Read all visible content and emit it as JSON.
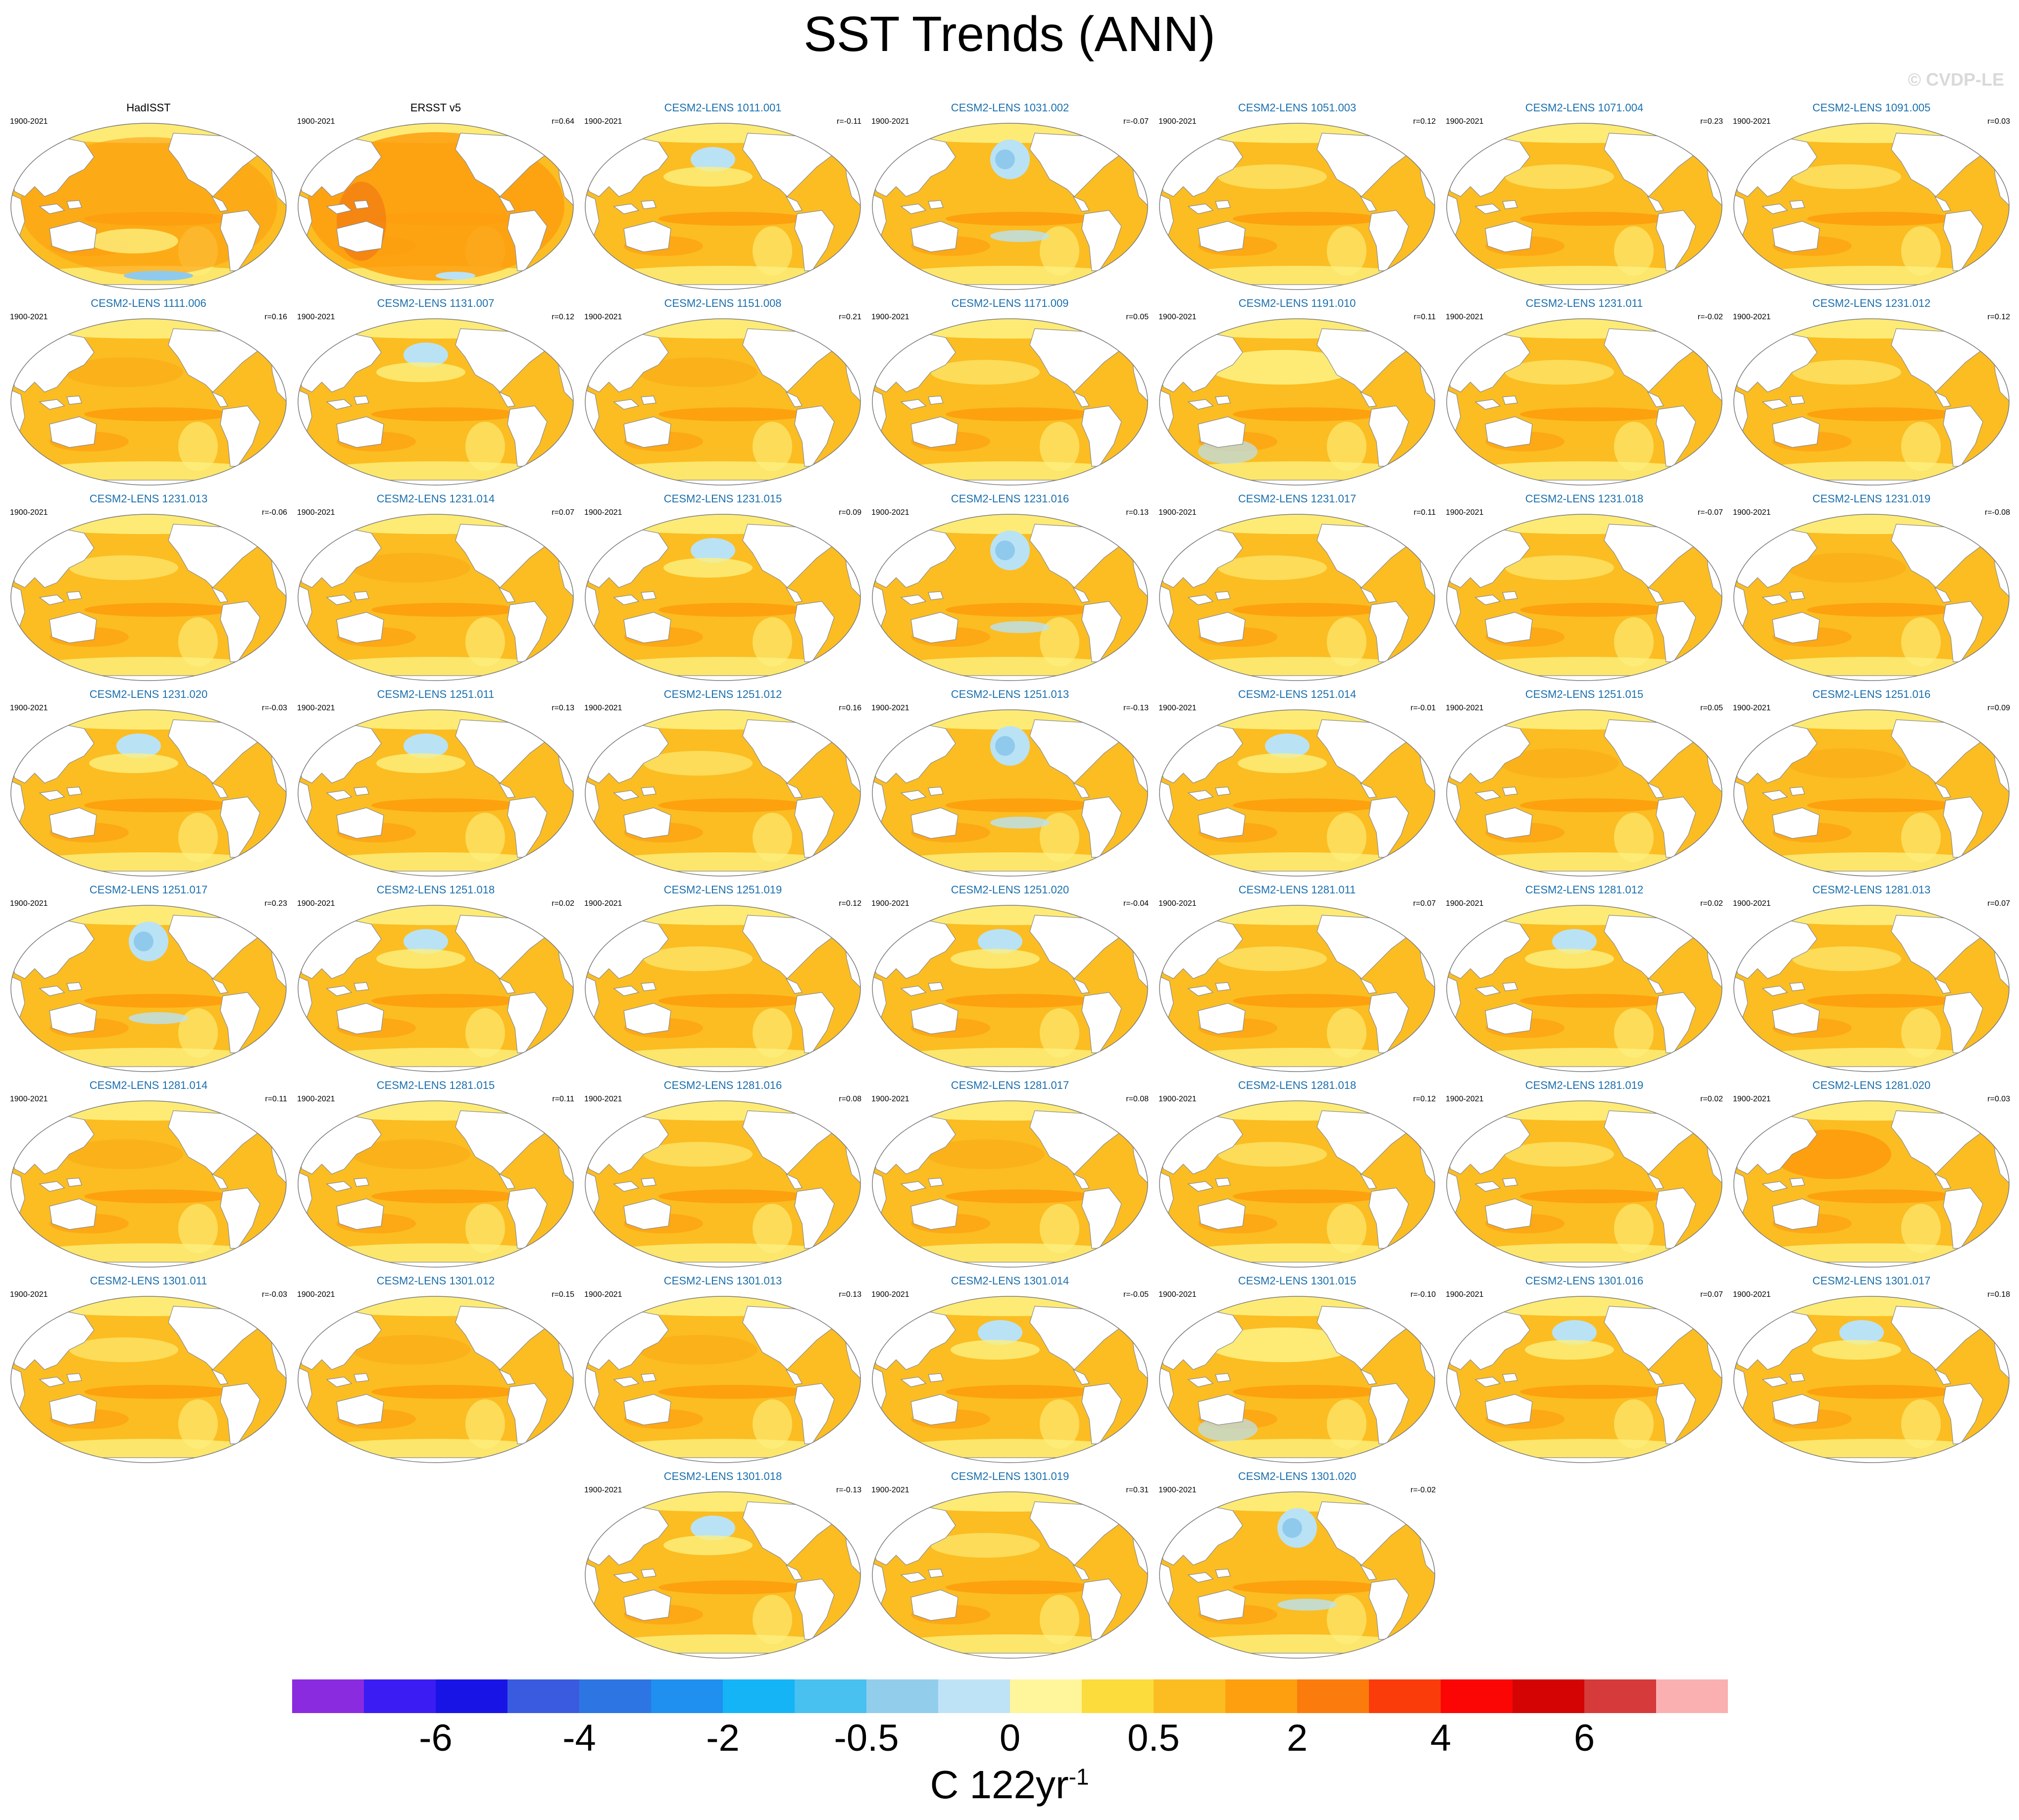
{
  "title": "SST Trends (ANN)",
  "watermark": "© CVDP-LE",
  "period": "1900-2021",
  "units": {
    "text": "C 122yr",
    "superscript": "-1"
  },
  "colors": {
    "ocean_base": "#fbbd22",
    "ocean_warm": "#fd9f0f",
    "ocean_light": "#fdf07f",
    "ocean_cool": "#b9e2f5",
    "ocean_cold": "#8fcaed",
    "ocean_hot": "#f06a12",
    "land": "#ffffff",
    "coast": "#8a8a8a",
    "model_title": "#1a6fae",
    "obs_title": "#000000"
  },
  "chart_data": {
    "type": "heatmap",
    "title": "SST Trends (ANN)",
    "description_units": "C 122yr-1",
    "colorbar": {
      "colors": [
        "#8b2be0",
        "#3b1df4",
        "#1914e6",
        "#3a5be0",
        "#2d75e3",
        "#1f8ff0",
        "#15b4f7",
        "#48c0f0",
        "#93cdec",
        "#bfe3f6",
        "#fff59a",
        "#fbdc3c",
        "#fbbd22",
        "#fd9f0f",
        "#fb7b0d",
        "#fa3c0a",
        "#fc0505",
        "#d40404",
        "#d63a3a",
        "#fab0b0"
      ],
      "tick_labels": [
        "-6",
        "-4",
        "-2",
        "-0.5",
        "0",
        "0.5",
        "2",
        "4",
        "6"
      ]
    },
    "panels": [
      {
        "name": "HadISST",
        "r": "",
        "obs": true,
        "pattern": "obs1"
      },
      {
        "name": "ERSST v5",
        "r": "r=0.64",
        "obs": true,
        "pattern": "obs2"
      },
      {
        "name": "CESM2-LENS 1011.001",
        "r": "r=-0.11",
        "pattern": "p_blue"
      },
      {
        "name": "CESM2-LENS 1031.002",
        "r": "r=-0.07",
        "pattern": "p_blue2"
      },
      {
        "name": "CESM2-LENS 1051.003",
        "r": "r=0.12",
        "pattern": "p_std"
      },
      {
        "name": "CESM2-LENS 1071.004",
        "r": "r=0.23",
        "pattern": "p_std"
      },
      {
        "name": "CESM2-LENS 1091.005",
        "r": "r=0.03",
        "pattern": "p_std"
      },
      {
        "name": "CESM2-LENS 1111.006",
        "r": "r=0.16",
        "pattern": "p_plain"
      },
      {
        "name": "CESM2-LENS 1131.007",
        "r": "r=0.12",
        "pattern": "p_blue"
      },
      {
        "name": "CESM2-LENS 1151.008",
        "r": "r=0.21",
        "pattern": "p_plain"
      },
      {
        "name": "CESM2-LENS 1171.009",
        "r": "r=0.05",
        "pattern": "p_std"
      },
      {
        "name": "CESM2-LENS 1191.010",
        "r": "r=0.11",
        "pattern": "p_light"
      },
      {
        "name": "CESM2-LENS 1231.011",
        "r": "r=-0.02",
        "pattern": "p_std"
      },
      {
        "name": "CESM2-LENS 1231.012",
        "r": "r=0.12",
        "pattern": "p_std"
      },
      {
        "name": "CESM2-LENS 1231.013",
        "r": "r=-0.06",
        "pattern": "p_std"
      },
      {
        "name": "CESM2-LENS 1231.014",
        "r": "r=0.07",
        "pattern": "p_plain"
      },
      {
        "name": "CESM2-LENS 1231.015",
        "r": "r=0.09",
        "pattern": "p_blue"
      },
      {
        "name": "CESM2-LENS 1231.016",
        "r": "r=0.13",
        "pattern": "p_blue2"
      },
      {
        "name": "CESM2-LENS 1231.017",
        "r": "r=0.11",
        "pattern": "p_std"
      },
      {
        "name": "CESM2-LENS 1231.018",
        "r": "r=-0.07",
        "pattern": "p_std"
      },
      {
        "name": "CESM2-LENS 1231.019",
        "r": "r=-0.08",
        "pattern": "p_plain"
      },
      {
        "name": "CESM2-LENS 1231.020",
        "r": "r=-0.03",
        "pattern": "p_blue"
      },
      {
        "name": "CESM2-LENS 1251.011",
        "r": "r=0.13",
        "pattern": "p_blue"
      },
      {
        "name": "CESM2-LENS 1251.012",
        "r": "r=0.16",
        "pattern": "p_std"
      },
      {
        "name": "CESM2-LENS 1251.013",
        "r": "r=-0.13",
        "pattern": "p_blue2"
      },
      {
        "name": "CESM2-LENS 1251.014",
        "r": "r=-0.01",
        "pattern": "p_blue"
      },
      {
        "name": "CESM2-LENS 1251.015",
        "r": "r=0.05",
        "pattern": "p_plain"
      },
      {
        "name": "CESM2-LENS 1251.016",
        "r": "r=0.09",
        "pattern": "p_plain"
      },
      {
        "name": "CESM2-LENS 1251.017",
        "r": "r=0.23",
        "pattern": "p_blue2"
      },
      {
        "name": "CESM2-LENS 1251.018",
        "r": "r=0.02",
        "pattern": "p_blue"
      },
      {
        "name": "CESM2-LENS 1251.019",
        "r": "r=0.12",
        "pattern": "p_std"
      },
      {
        "name": "CESM2-LENS 1251.020",
        "r": "r=-0.04",
        "pattern": "p_blue"
      },
      {
        "name": "CESM2-LENS 1281.011",
        "r": "r=0.07",
        "pattern": "p_std"
      },
      {
        "name": "CESM2-LENS 1281.012",
        "r": "r=0.02",
        "pattern": "p_blue"
      },
      {
        "name": "CESM2-LENS 1281.013",
        "r": "r=0.07",
        "pattern": "p_std"
      },
      {
        "name": "CESM2-LENS 1281.014",
        "r": "r=0.11",
        "pattern": "p_plain"
      },
      {
        "name": "CESM2-LENS 1281.015",
        "r": "r=0.11",
        "pattern": "p_plain"
      },
      {
        "name": "CESM2-LENS 1281.016",
        "r": "r=0.08",
        "pattern": "p_std"
      },
      {
        "name": "CESM2-LENS 1281.017",
        "r": "r=0.08",
        "pattern": "p_plain"
      },
      {
        "name": "CESM2-LENS 1281.018",
        "r": "r=0.12",
        "pattern": "p_std"
      },
      {
        "name": "CESM2-LENS 1281.019",
        "r": "r=0.02",
        "pattern": "p_std"
      },
      {
        "name": "CESM2-LENS 1281.020",
        "r": "r=0.03",
        "pattern": "p_hot"
      },
      {
        "name": "CESM2-LENS 1301.011",
        "r": "r=-0.03",
        "pattern": "p_std"
      },
      {
        "name": "CESM2-LENS 1301.012",
        "r": "r=0.15",
        "pattern": "p_plain"
      },
      {
        "name": "CESM2-LENS 1301.013",
        "r": "r=0.13",
        "pattern": "p_plain"
      },
      {
        "name": "CESM2-LENS 1301.014",
        "r": "r=-0.05",
        "pattern": "p_blue"
      },
      {
        "name": "CESM2-LENS 1301.015",
        "r": "r=-0.10",
        "pattern": "p_light"
      },
      {
        "name": "CESM2-LENS 1301.016",
        "r": "r=0.07",
        "pattern": "p_blue"
      },
      {
        "name": "CESM2-LENS 1301.017",
        "r": "r=0.18",
        "pattern": "p_blue"
      },
      {
        "name": "CESM2-LENS 1301.018",
        "r": "r=-0.13",
        "pattern": "p_blue"
      },
      {
        "name": "CESM2-LENS 1301.019",
        "r": "r=0.31",
        "pattern": "p_std"
      },
      {
        "name": "CESM2-LENS 1301.020",
        "r": "r=-0.02",
        "pattern": "p_blue2"
      }
    ]
  }
}
